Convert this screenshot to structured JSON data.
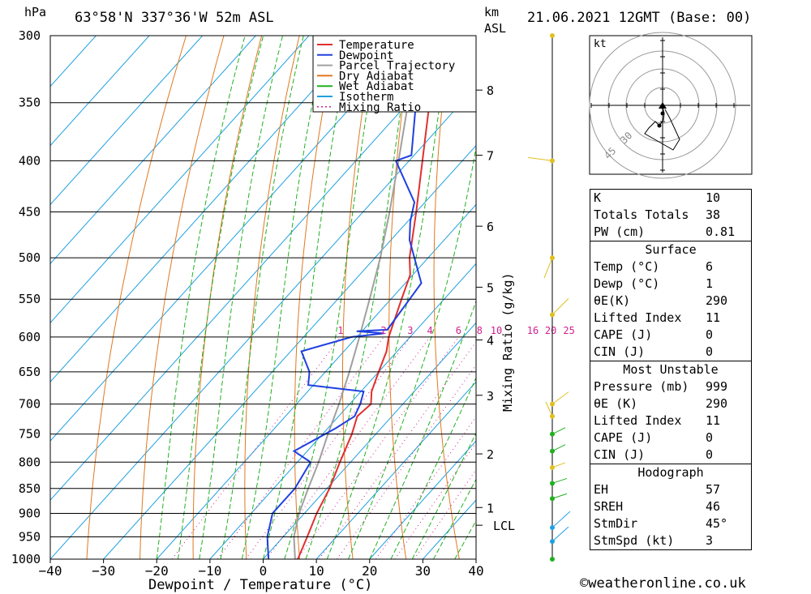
{
  "header": {
    "hpa_label": "hPa",
    "location": "63°58'N  337°36'W  52m  ASL",
    "km_label": "km",
    "asl_label": "ASL",
    "date": "21.06.2021  12GMT  (Base: 00)"
  },
  "axes": {
    "xlabel": "Dewpoint / Temperature (°C)",
    "mixing_ratio_label": "Mixing Ratio (g/kg)"
  },
  "legend": [
    {
      "label": "Temperature",
      "color": "#e03030",
      "style": "solid"
    },
    {
      "label": "Dewpoint",
      "color": "#2040e0",
      "style": "solid"
    },
    {
      "label": "Parcel Trajectory",
      "color": "#a0a0a0",
      "style": "solid"
    },
    {
      "label": "Dry Adiabat",
      "color": "#e07820",
      "style": "solid"
    },
    {
      "label": "Wet Adiabat",
      "color": "#20b020",
      "style": "solid"
    },
    {
      "label": "Isotherm",
      "color": "#20a0e0",
      "style": "solid"
    },
    {
      "label": "Mixing Ratio",
      "color": "#d02090",
      "style": "dotted"
    }
  ],
  "chart_data": {
    "type": "skew-t",
    "pressure_levels": [
      300,
      350,
      400,
      450,
      500,
      550,
      600,
      650,
      700,
      750,
      800,
      850,
      900,
      950,
      1000
    ],
    "xticks": [
      -40,
      -30,
      -20,
      -10,
      0,
      10,
      20,
      30,
      40
    ],
    "xlim": [
      -40,
      40
    ],
    "ylim": [
      1000,
      300
    ],
    "km_ticks": [
      {
        "km": "1",
        "p": 888
      },
      {
        "km": "2",
        "p": 785
      },
      {
        "km": "3",
        "p": 686
      },
      {
        "km": "4",
        "p": 604
      },
      {
        "km": "5",
        "p": 535
      },
      {
        "km": "6",
        "p": 465
      },
      {
        "km": "7",
        "p": 395
      },
      {
        "km": "8",
        "p": 340
      }
    ],
    "lcl": {
      "label": "LCL",
      "p": 925
    },
    "mixing_ratio_labels": [
      "1",
      "2",
      "3",
      "4",
      "6",
      "8",
      "10",
      "16",
      "20",
      "25"
    ],
    "mixing_ratio_values": [
      1,
      2,
      3,
      4,
      6,
      8,
      10,
      16,
      20,
      25
    ],
    "temperature": [
      {
        "p": 1000,
        "t": 6.5
      },
      {
        "p": 950,
        "t": 4.5
      },
      {
        "p": 900,
        "t": 2.3
      },
      {
        "p": 850,
        "t": 0.5
      },
      {
        "p": 800,
        "t": -2.0
      },
      {
        "p": 750,
        "t": -4.5
      },
      {
        "p": 720,
        "t": -6.5
      },
      {
        "p": 700,
        "t": -6.0
      },
      {
        "p": 680,
        "t": -8.0
      },
      {
        "p": 650,
        "t": -10.0
      },
      {
        "p": 620,
        "t": -12.0
      },
      {
        "p": 600,
        "t": -14.0
      },
      {
        "p": 550,
        "t": -18.0
      },
      {
        "p": 520,
        "t": -20.5
      },
      {
        "p": 500,
        "t": -23.5
      },
      {
        "p": 450,
        "t": -30.0
      },
      {
        "p": 400,
        "t": -37.5
      },
      {
        "p": 350,
        "t": -46.0
      },
      {
        "p": 340,
        "t": -48.0
      },
      {
        "p": 300,
        "t": -52.5
      }
    ],
    "dewpoint": [
      {
        "p": 1000,
        "t": 1.0
      },
      {
        "p": 950,
        "t": -3.0
      },
      {
        "p": 900,
        "t": -6.0
      },
      {
        "p": 850,
        "t": -6.0
      },
      {
        "p": 800,
        "t": -7.5
      },
      {
        "p": 780,
        "t": -12.5
      },
      {
        "p": 740,
        "t": -8.5
      },
      {
        "p": 720,
        "t": -7.0
      },
      {
        "p": 700,
        "t": -8.0
      },
      {
        "p": 680,
        "t": -9.5
      },
      {
        "p": 670,
        "t": -21.0
      },
      {
        "p": 650,
        "t": -23.0
      },
      {
        "p": 620,
        "t": -28.0
      },
      {
        "p": 600,
        "t": -21.0
      },
      {
        "p": 595,
        "t": -15.5
      },
      {
        "p": 592,
        "t": -21.0
      },
      {
        "p": 590,
        "t": -15.5
      },
      {
        "p": 530,
        "t": -17.0
      },
      {
        "p": 480,
        "t": -26.5
      },
      {
        "p": 460,
        "t": -29.5
      },
      {
        "p": 440,
        "t": -32.0
      },
      {
        "p": 400,
        "t": -42.5
      },
      {
        "p": 395,
        "t": -40.5
      },
      {
        "p": 345,
        "t": -49.5
      },
      {
        "p": 330,
        "t": -51.0
      },
      {
        "p": 325,
        "t": -55.0
      },
      {
        "p": 300,
        "t": -67.0
      }
    ],
    "parcel": [
      {
        "p": 1000,
        "t": 6.0
      },
      {
        "p": 950,
        "t": 2.0
      },
      {
        "p": 900,
        "t": -1.0
      },
      {
        "p": 850,
        "t": -3.5
      },
      {
        "p": 800,
        "t": -6.0
      },
      {
        "p": 750,
        "t": -9.0
      },
      {
        "p": 700,
        "t": -12.0
      },
      {
        "p": 650,
        "t": -15.5
      },
      {
        "p": 600,
        "t": -19.5
      },
      {
        "p": 550,
        "t": -24.0
      },
      {
        "p": 500,
        "t": -29.0
      },
      {
        "p": 450,
        "t": -35.0
      },
      {
        "p": 400,
        "t": -42.0
      },
      {
        "p": 350,
        "t": -50.0
      },
      {
        "p": 310,
        "t": -57.0
      }
    ],
    "hodograph": {
      "unit_label": "kt",
      "ring_labels": [
        "30",
        "45"
      ]
    }
  },
  "indices": {
    "rows": [
      {
        "label": "K",
        "value": "10"
      },
      {
        "label": "Totals Totals",
        "value": "38"
      },
      {
        "label": "PW (cm)",
        "value": "0.81"
      }
    ],
    "surface": {
      "title": "Surface",
      "rows": [
        {
          "label": "Temp (°C)",
          "value": "6"
        },
        {
          "label": "Dewp (°C)",
          "value": "1"
        },
        {
          "label": "θE(K)",
          "value": "290"
        },
        {
          "label": "Lifted Index",
          "value": "11"
        },
        {
          "label": "CAPE (J)",
          "value": "0"
        },
        {
          "label": "CIN (J)",
          "value": "0"
        }
      ]
    },
    "most_unstable": {
      "title": "Most Unstable",
      "rows": [
        {
          "label": "Pressure (mb)",
          "value": "999"
        },
        {
          "label": "θE (K)",
          "value": "290"
        },
        {
          "label": "Lifted Index",
          "value": "11"
        },
        {
          "label": "CAPE (J)",
          "value": "0"
        },
        {
          "label": "CIN (J)",
          "value": "0"
        }
      ]
    },
    "hodograph": {
      "title": "Hodograph",
      "rows": [
        {
          "label": "EH",
          "value": "57"
        },
        {
          "label": "SREH",
          "value": "46"
        },
        {
          "label": "StmDir",
          "value": "45°"
        },
        {
          "label": "StmSpd (kt)",
          "value": "3"
        }
      ]
    }
  },
  "credit": "©weatheronline.co.uk"
}
